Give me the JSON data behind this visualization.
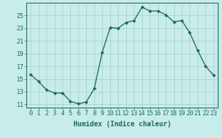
{
  "x": [
    0,
    1,
    2,
    3,
    4,
    5,
    6,
    7,
    8,
    9,
    10,
    11,
    12,
    13,
    14,
    15,
    16,
    17,
    18,
    19,
    20,
    21,
    22,
    23
  ],
  "y": [
    15.7,
    14.6,
    13.3,
    12.8,
    12.8,
    11.5,
    11.1,
    11.4,
    13.5,
    19.2,
    23.1,
    23.0,
    23.9,
    24.2,
    26.3,
    25.7,
    25.7,
    25.1,
    24.0,
    24.2,
    22.3,
    19.5,
    17.0,
    15.6
  ],
  "line_color": "#1a6b5a",
  "marker": "D",
  "marker_size": 2.2,
  "bg_color": "#c8ecea",
  "grid_color": "#aed4cf",
  "axis_color": "#1a6b5a",
  "xlabel": "Humidex (Indice chaleur)",
  "xlabel_fontsize": 7,
  "tick_fontsize": 6.5,
  "ylim": [
    10.5,
    27.0
  ],
  "xlim": [
    -0.5,
    23.5
  ],
  "yticks": [
    11,
    13,
    15,
    17,
    19,
    21,
    23,
    25
  ],
  "xticks": [
    0,
    1,
    2,
    3,
    4,
    5,
    6,
    7,
    8,
    9,
    10,
    11,
    12,
    13,
    14,
    15,
    16,
    17,
    18,
    19,
    20,
    21,
    22,
    23
  ]
}
